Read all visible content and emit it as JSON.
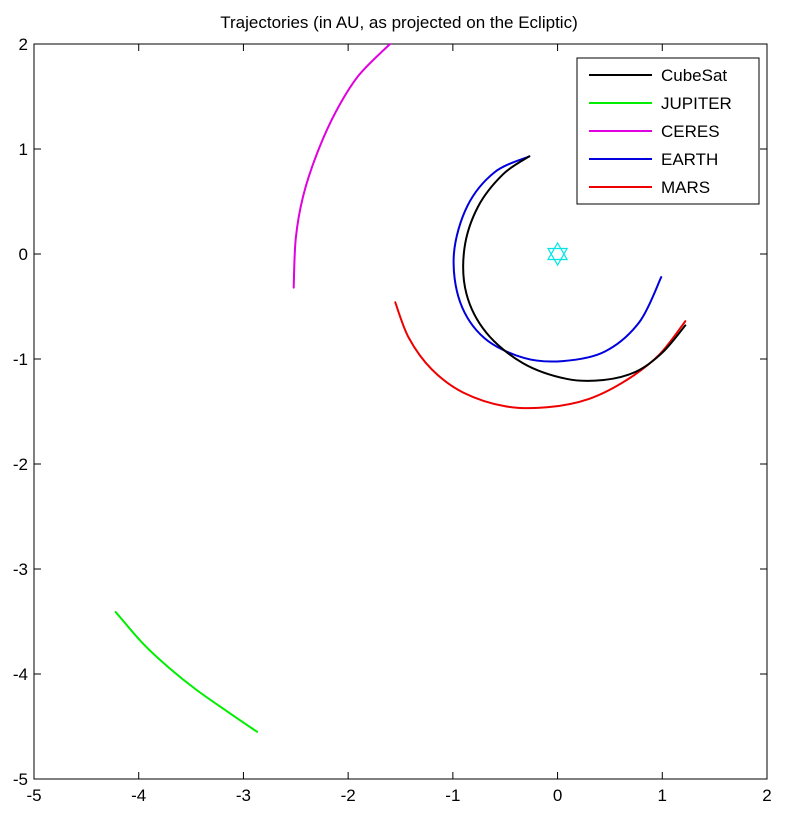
{
  "chart_data": {
    "type": "line",
    "title": "Trajectories (in AU, as projected on the Ecliptic)",
    "xlabel": "",
    "ylabel": "",
    "xlim": [
      -5,
      2
    ],
    "ylim": [
      -5,
      2
    ],
    "xticks": [
      -5,
      -4,
      -3,
      -2,
      -1,
      0,
      1,
      2
    ],
    "yticks": [
      2,
      1,
      0,
      -1,
      -2,
      -3,
      -4,
      -5
    ],
    "xtick_labels": [
      "-5",
      "-4",
      "-3",
      "-2",
      "-1",
      "0",
      "1",
      "2"
    ],
    "ytick_labels": [
      "2",
      "1",
      "0",
      "-1",
      "-2",
      "-3",
      "-4",
      "-5"
    ],
    "grid": false,
    "legend_position": "top-right",
    "sun_marker": {
      "x": 0,
      "y": 0,
      "color": "#00e5e5",
      "symbol": "hexagram"
    },
    "series": [
      {
        "name": "CubeSat",
        "color": "#000000",
        "x": [
          -0.27,
          -0.52,
          -0.76,
          -0.89,
          -0.87,
          -0.68,
          -0.33,
          0.09,
          0.44,
          0.75,
          1.0,
          1.22
        ],
        "y": [
          0.93,
          0.76,
          0.45,
          0.05,
          -0.38,
          -0.75,
          -1.04,
          -1.19,
          -1.2,
          -1.12,
          -0.94,
          -0.68
        ]
      },
      {
        "name": "JUPITER",
        "color": "#00ee00",
        "x": [
          -4.22,
          -3.95,
          -3.7,
          -3.45,
          -3.15,
          -2.87
        ],
        "y": [
          -3.41,
          -3.72,
          -3.95,
          -4.15,
          -4.36,
          -4.55
        ]
      },
      {
        "name": "CERES",
        "color": "#e000e0",
        "x": [
          -2.52,
          -2.5,
          -2.43,
          -2.3,
          -2.12,
          -1.9,
          -1.6
        ],
        "y": [
          -0.32,
          0.15,
          0.55,
          0.95,
          1.35,
          1.7,
          2.0
        ]
      },
      {
        "name": "EARTH",
        "color": "#0000dd",
        "x": [
          -0.27,
          -0.6,
          -0.86,
          -0.99,
          -0.93,
          -0.7,
          -0.32,
          0.05,
          0.45,
          0.78,
          0.99
        ],
        "y": [
          0.93,
          0.78,
          0.46,
          0.0,
          -0.46,
          -0.8,
          -0.99,
          -1.02,
          -0.93,
          -0.65,
          -0.22
        ]
      },
      {
        "name": "MARS",
        "color": "#ee0000",
        "x": [
          -1.55,
          -1.42,
          -1.2,
          -0.9,
          -0.5,
          -0.1,
          0.3,
          0.66,
          0.97,
          1.22
        ],
        "y": [
          -0.46,
          -0.8,
          -1.1,
          -1.32,
          -1.45,
          -1.46,
          -1.38,
          -1.2,
          -0.96,
          -0.64
        ]
      }
    ]
  }
}
